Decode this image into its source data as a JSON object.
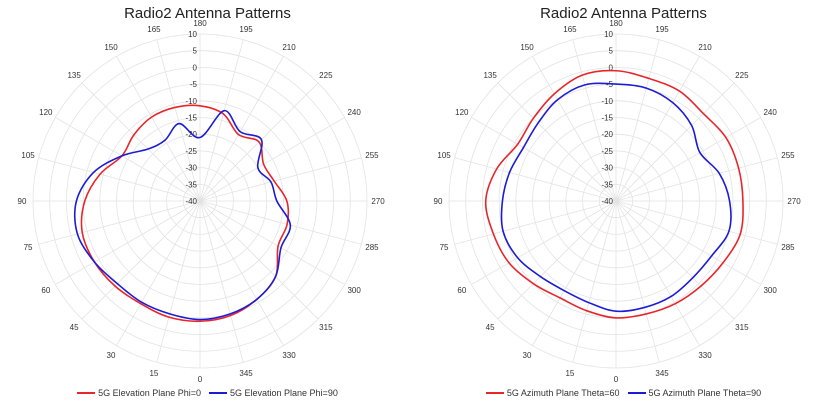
{
  "chart_data": [
    {
      "type": "polar-line",
      "title": "Radio2 Antenna Patterns",
      "angle_unit": "deg",
      "angular_ticks": [
        0,
        15,
        30,
        45,
        60,
        75,
        90,
        105,
        120,
        135,
        150,
        165,
        180,
        195,
        210,
        225,
        240,
        255,
        270,
        285,
        300,
        315,
        330,
        345
      ],
      "angle_labels": [
        "0",
        "15",
        "30",
        "45",
        "60",
        "75",
        "90",
        "105",
        "120",
        "135",
        "150",
        "165",
        "180",
        "195",
        "210",
        "225",
        "240",
        "255",
        "270",
        "285",
        "300",
        "315",
        "330",
        "345"
      ],
      "rlim": [
        -40,
        10
      ],
      "radial_ticks": [
        -40,
        -35,
        -30,
        -25,
        -20,
        -15,
        -10,
        -5,
        0,
        5,
        10
      ],
      "radial_labels": [
        "-40",
        "-35",
        "-30",
        "-25",
        "-20",
        "-15",
        "-10",
        "-5",
        "0",
        "5",
        "10"
      ],
      "grid": true,
      "legend_position": "bottom",
      "series": [
        {
          "name": "5G Elevation Plane Phi=0",
          "color": "#e8262a",
          "angles": [
            0,
            15,
            30,
            45,
            60,
            75,
            90,
            105,
            120,
            135,
            150,
            165,
            180,
            195,
            210,
            225,
            240,
            255,
            270,
            285,
            300,
            315,
            330,
            345,
            360
          ],
          "values": [
            -4,
            -4,
            -4.5,
            -4,
            -3.5,
            -3.5,
            -5.5,
            -9,
            -13,
            -12,
            -11,
            -11,
            -11.5,
            -13,
            -17,
            -15,
            -18,
            -17,
            -14,
            -13,
            -13,
            -8,
            -6,
            -4.5,
            -4
          ]
        },
        {
          "name": "5G Elevation Plane Phi=90",
          "color": "#1c1cd6",
          "angles": [
            0,
            15,
            30,
            45,
            60,
            75,
            90,
            105,
            120,
            135,
            150,
            165,
            180,
            195,
            210,
            225,
            240,
            255,
            270,
            285,
            300,
            315,
            330,
            345,
            360
          ],
          "values": [
            -4.5,
            -5,
            -5,
            -5,
            -3.5,
            -2,
            -3,
            -7,
            -13,
            -18,
            -19,
            -16,
            -21,
            -12,
            -16,
            -14,
            -20,
            -18,
            -17,
            -12,
            -12,
            -8,
            -6,
            -5,
            -4.5
          ]
        }
      ]
    },
    {
      "type": "polar-line",
      "title": "Radio2 Antenna Patterns",
      "angle_unit": "deg",
      "angular_ticks": [
        0,
        15,
        30,
        45,
        60,
        75,
        90,
        105,
        120,
        135,
        150,
        165,
        180,
        195,
        210,
        225,
        240,
        255,
        270,
        285,
        300,
        315,
        330,
        345
      ],
      "angle_labels": [
        "0",
        "15",
        "30",
        "45",
        "60",
        "75",
        "90",
        "105",
        "120",
        "135",
        "150",
        "165",
        "180",
        "195",
        "210",
        "225",
        "240",
        "255",
        "270",
        "285",
        "300",
        "315",
        "330",
        "345"
      ],
      "rlim": [
        -40,
        10
      ],
      "radial_ticks": [
        -40,
        -35,
        -30,
        -25,
        -20,
        -15,
        -10,
        -5,
        0,
        5,
        10
      ],
      "radial_labels": [
        "-40",
        "-35",
        "-30",
        "-25",
        "-20",
        "-15",
        "-10",
        "-5",
        "0",
        "5",
        "10"
      ],
      "grid": true,
      "legend_position": "bottom",
      "series": [
        {
          "name": "5G Azimuth Plane Theta=60",
          "color": "#e8262a",
          "angles": [
            0,
            15,
            30,
            45,
            60,
            75,
            90,
            105,
            120,
            135,
            150,
            165,
            180,
            195,
            210,
            225,
            240,
            255,
            270,
            285,
            300,
            315,
            330,
            345,
            360
          ],
          "values": [
            -5,
            -6,
            -6.5,
            -5,
            -3,
            -2,
            -1,
            -3,
            -6,
            -5,
            -3,
            -1,
            -1,
            -2,
            -2,
            -3,
            -2,
            -2,
            -2,
            -1.5,
            -3,
            -4,
            -4.5,
            -5,
            -5
          ]
        },
        {
          "name": "5G Azimuth Plane Theta=90",
          "color": "#1c1cd6",
          "angles": [
            0,
            15,
            30,
            45,
            60,
            75,
            90,
            105,
            120,
            135,
            150,
            165,
            180,
            195,
            210,
            225,
            240,
            255,
            270,
            285,
            300,
            315,
            330,
            345,
            360
          ],
          "values": [
            -7,
            -8.5,
            -9,
            -8,
            -6,
            -5,
            -6,
            -7,
            -8,
            -7,
            -5,
            -4,
            -5,
            -5,
            -6,
            -8,
            -11,
            -8,
            -6,
            -5,
            -7,
            -7.5,
            -7,
            -7,
            -7
          ]
        }
      ]
    }
  ]
}
